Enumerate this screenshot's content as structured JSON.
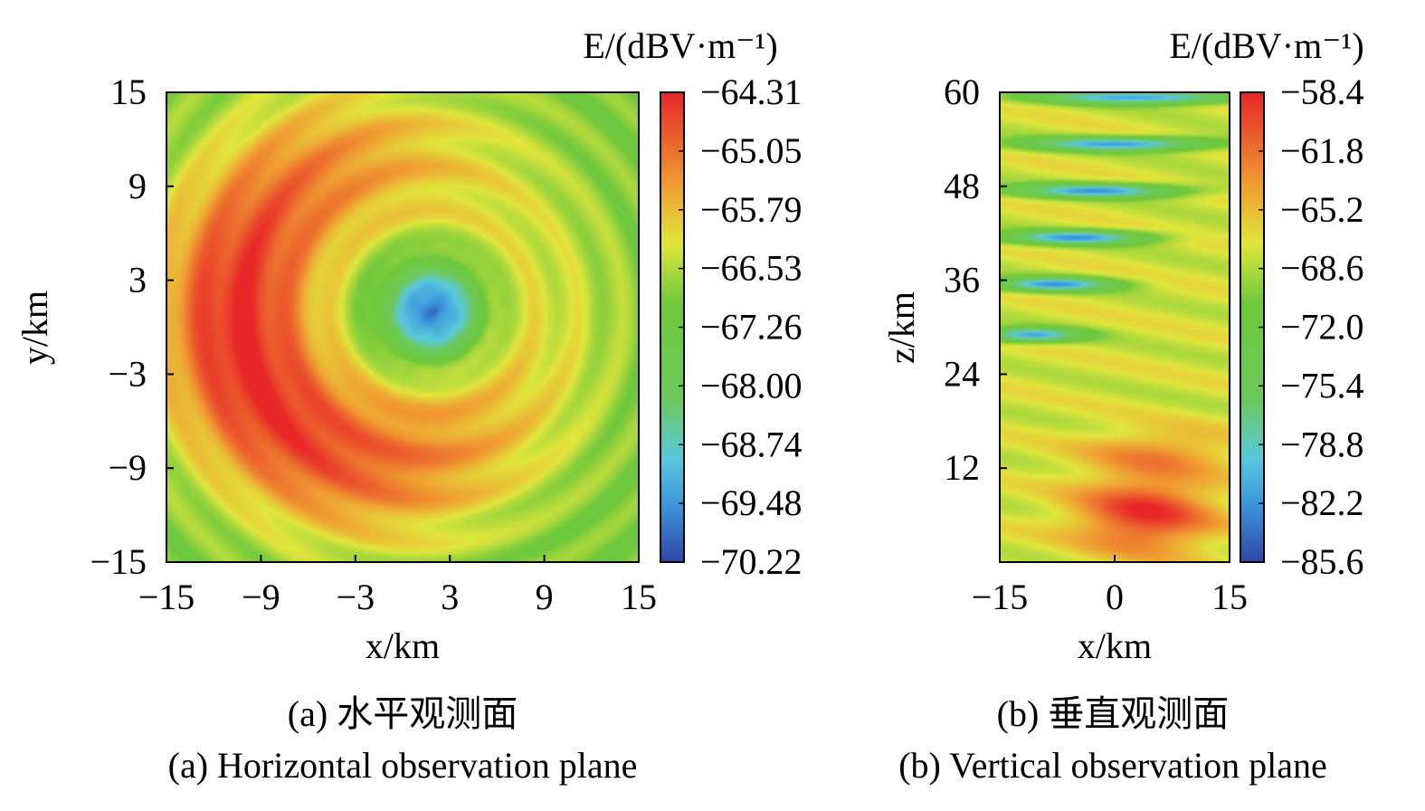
{
  "chart_data": [
    {
      "type": "heatmap",
      "panel_label": "(a) 水平观测面",
      "caption": "(a) Horizontal observation plane",
      "xlabel": "x/km",
      "ylabel": "y/km",
      "xlim": [
        -15,
        15
      ],
      "ylim": [
        -15,
        15
      ],
      "xticks": [
        "−15",
        "−9",
        "−3",
        "3",
        "9",
        "15"
      ],
      "yticks": [
        "15",
        "9",
        "3",
        "−3",
        "−9",
        "−15"
      ],
      "colorbar": {
        "title": "E/(dBV·m⁻¹)",
        "range": [
          -70.22,
          -64.31
        ],
        "ticks": [
          "−64.31",
          "−65.05",
          "−65.79",
          "−66.53",
          "−67.26",
          "−68.00",
          "−68.74",
          "−69.48",
          "−70.22"
        ]
      },
      "features": [
        {
          "kind": "crescent maximum",
          "center": [
            -8,
            -3
          ],
          "value": -64.4
        },
        {
          "kind": "local minimum",
          "center": [
            2,
            1
          ],
          "value": -70.0
        },
        {
          "kind": "background",
          "value": -66.9
        }
      ]
    },
    {
      "type": "heatmap",
      "panel_label": "(b) 垂直观测面",
      "caption": "(b) Vertical observation plane",
      "xlabel": "x/km",
      "ylabel": "z/km",
      "xlim": [
        -15,
        15
      ],
      "ylim": [
        0,
        60
      ],
      "xticks": [
        "−15",
        "0",
        "15"
      ],
      "yticks": [
        "60",
        "48",
        "36",
        "24",
        "12"
      ],
      "colorbar": {
        "title": "E/(dBV·m⁻¹)",
        "range": [
          -85.6,
          -58.4
        ],
        "ticks": [
          "−58.4",
          "−61.8",
          "−65.2",
          "−68.6",
          "−72.0",
          "−75.4",
          "−78.8",
          "−82.2",
          "−85.6"
        ]
      },
      "features": [
        {
          "kind": "maximum",
          "center": [
            4,
            6
          ],
          "value": -59.0
        },
        {
          "kind": "interference minima bands",
          "z": [
            59.5,
            53.5,
            47.5,
            41.5,
            35.5,
            29.0
          ],
          "value": -85.0
        },
        {
          "kind": "background",
          "value": -67.5
        }
      ]
    }
  ]
}
